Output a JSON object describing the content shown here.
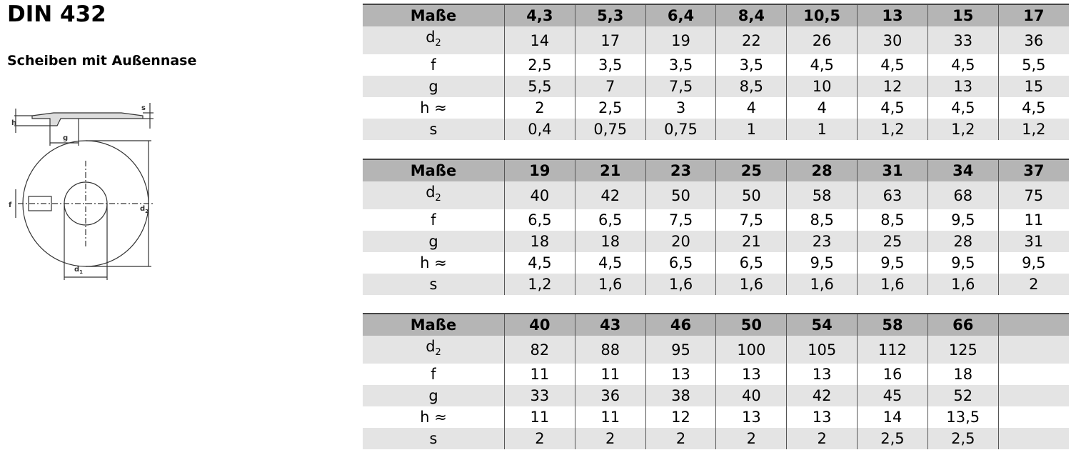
{
  "header": {
    "title": "DIN 432",
    "subtitle": "Scheiben mit Außennase"
  },
  "diagram": {
    "labels": {
      "h": "h",
      "s": "s",
      "g": "g",
      "f": "f",
      "d2": "d",
      "d2_sub": "2",
      "d1": "d",
      "d1_sub": "1"
    }
  },
  "tables": [
    {
      "header": [
        "Maße",
        "4,3",
        "5,3",
        "6,4",
        "8,4",
        "10,5",
        "13",
        "15",
        "17"
      ],
      "rows": [
        {
          "label": "d",
          "sub": "2",
          "values": [
            "14",
            "17",
            "19",
            "22",
            "26",
            "30",
            "33",
            "36"
          ]
        },
        {
          "label": "f",
          "values": [
            "2,5",
            "3,5",
            "3,5",
            "3,5",
            "4,5",
            "4,5",
            "4,5",
            "5,5"
          ]
        },
        {
          "label": "g",
          "values": [
            "5,5",
            "7",
            "7,5",
            "8,5",
            "10",
            "12",
            "13",
            "15"
          ]
        },
        {
          "label": "h ≈",
          "values": [
            "2",
            "2,5",
            "3",
            "4",
            "4",
            "4,5",
            "4,5",
            "4,5"
          ]
        },
        {
          "label": "s",
          "values": [
            "0,4",
            "0,75",
            "0,75",
            "1",
            "1",
            "1,2",
            "1,2",
            "1,2"
          ]
        }
      ]
    },
    {
      "header": [
        "Maße",
        "19",
        "21",
        "23",
        "25",
        "28",
        "31",
        "34",
        "37"
      ],
      "rows": [
        {
          "label": "d",
          "sub": "2",
          "values": [
            "40",
            "42",
            "50",
            "50",
            "58",
            "63",
            "68",
            "75"
          ]
        },
        {
          "label": "f",
          "values": [
            "6,5",
            "6,5",
            "7,5",
            "7,5",
            "8,5",
            "8,5",
            "9,5",
            "11"
          ]
        },
        {
          "label": "g",
          "values": [
            "18",
            "18",
            "20",
            "21",
            "23",
            "25",
            "28",
            "31"
          ]
        },
        {
          "label": "h ≈",
          "values": [
            "4,5",
            "4,5",
            "6,5",
            "6,5",
            "9,5",
            "9,5",
            "9,5",
            "9,5"
          ]
        },
        {
          "label": "s",
          "values": [
            "1,2",
            "1,6",
            "1,6",
            "1,6",
            "1,6",
            "1,6",
            "1,6",
            "2"
          ]
        }
      ]
    },
    {
      "header": [
        "Maße",
        "40",
        "43",
        "46",
        "50",
        "54",
        "58",
        "66"
      ],
      "rows": [
        {
          "label": "d",
          "sub": "2",
          "values": [
            "82",
            "88",
            "95",
            "100",
            "105",
            "112",
            "125"
          ]
        },
        {
          "label": "f",
          "values": [
            "11",
            "11",
            "13",
            "13",
            "13",
            "16",
            "18"
          ]
        },
        {
          "label": "g",
          "values": [
            "33",
            "36",
            "38",
            "40",
            "42",
            "45",
            "52"
          ]
        },
        {
          "label": "h ≈",
          "values": [
            "11",
            "11",
            "12",
            "13",
            "13",
            "14",
            "13,5"
          ]
        },
        {
          "label": "s",
          "values": [
            "2",
            "2",
            "2",
            "2",
            "2",
            "2,5",
            "2,5"
          ]
        }
      ]
    }
  ]
}
